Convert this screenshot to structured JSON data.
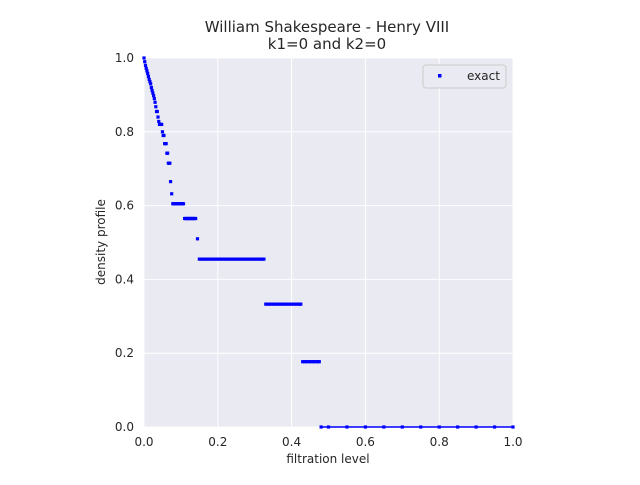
{
  "chart_data": {
    "type": "scatter",
    "title": "William Shakespeare - Henry VIII",
    "subtitle": "k1=0 and k2=0",
    "xlabel": "filtration level",
    "ylabel": "density profile",
    "xlim": [
      0.0,
      1.0
    ],
    "ylim": [
      0.0,
      1.0
    ],
    "xticks": [
      "0.0",
      "0.2",
      "0.4",
      "0.6",
      "0.8",
      "1.0"
    ],
    "yticks": [
      "0.0",
      "0.2",
      "0.4",
      "0.6",
      "0.8",
      "1.0"
    ],
    "grid": true,
    "legend_position": "top-right",
    "colors": {
      "background": "#eaeaf2",
      "grid": "#ffffff",
      "series": "#0000ff"
    },
    "series": [
      {
        "name": "exact",
        "marker": "square",
        "color": "#0000ff",
        "points": [
          [
            0.0,
            1.0
          ],
          [
            0.002,
            0.99
          ],
          [
            0.004,
            0.98
          ],
          [
            0.006,
            0.972
          ],
          [
            0.008,
            0.965
          ],
          [
            0.01,
            0.958
          ],
          [
            0.012,
            0.95
          ],
          [
            0.014,
            0.942
          ],
          [
            0.016,
            0.936
          ],
          [
            0.018,
            0.93
          ],
          [
            0.02,
            0.92
          ],
          [
            0.022,
            0.912
          ],
          [
            0.024,
            0.905
          ],
          [
            0.026,
            0.898
          ],
          [
            0.028,
            0.89
          ],
          [
            0.03,
            0.88
          ],
          [
            0.032,
            0.868
          ],
          [
            0.034,
            0.855
          ],
          [
            0.036,
            0.855
          ],
          [
            0.038,
            0.84
          ],
          [
            0.04,
            0.828
          ],
          [
            0.042,
            0.82
          ],
          [
            0.044,
            0.82
          ],
          [
            0.046,
            0.82
          ],
          [
            0.048,
            0.82
          ],
          [
            0.05,
            0.8
          ],
          [
            0.052,
            0.79
          ],
          [
            0.054,
            0.79
          ],
          [
            0.056,
            0.768
          ],
          [
            0.058,
            0.768
          ],
          [
            0.06,
            0.768
          ],
          [
            0.062,
            0.742
          ],
          [
            0.064,
            0.742
          ],
          [
            0.066,
            0.715
          ],
          [
            0.068,
            0.715
          ],
          [
            0.07,
            0.715
          ],
          [
            0.072,
            0.665
          ],
          [
            0.075,
            0.632
          ],
          [
            0.078,
            0.605
          ],
          [
            0.08,
            0.605
          ],
          [
            0.083,
            0.605
          ],
          [
            0.086,
            0.605
          ],
          [
            0.089,
            0.605
          ],
          [
            0.092,
            0.605
          ],
          [
            0.095,
            0.605
          ],
          [
            0.098,
            0.605
          ],
          [
            0.101,
            0.605
          ],
          [
            0.104,
            0.605
          ],
          [
            0.107,
            0.605
          ],
          [
            0.11,
            0.565
          ],
          [
            0.113,
            0.565
          ],
          [
            0.116,
            0.565
          ],
          [
            0.119,
            0.565
          ],
          [
            0.122,
            0.565
          ],
          [
            0.125,
            0.565
          ],
          [
            0.128,
            0.565
          ],
          [
            0.131,
            0.565
          ],
          [
            0.134,
            0.565
          ],
          [
            0.137,
            0.565
          ],
          [
            0.14,
            0.565
          ],
          [
            0.145,
            0.51
          ],
          [
            0.15,
            0.455
          ],
          [
            0.16,
            0.455
          ],
          [
            0.17,
            0.455
          ],
          [
            0.18,
            0.455
          ],
          [
            0.19,
            0.455
          ],
          [
            0.2,
            0.455
          ],
          [
            0.21,
            0.455
          ],
          [
            0.22,
            0.455
          ],
          [
            0.23,
            0.455
          ],
          [
            0.24,
            0.455
          ],
          [
            0.25,
            0.455
          ],
          [
            0.26,
            0.455
          ],
          [
            0.27,
            0.455
          ],
          [
            0.28,
            0.455
          ],
          [
            0.29,
            0.455
          ],
          [
            0.3,
            0.455
          ],
          [
            0.31,
            0.455
          ],
          [
            0.32,
            0.455
          ],
          [
            0.325,
            0.455
          ],
          [
            0.33,
            0.333
          ],
          [
            0.34,
            0.333
          ],
          [
            0.35,
            0.333
          ],
          [
            0.36,
            0.333
          ],
          [
            0.37,
            0.333
          ],
          [
            0.38,
            0.333
          ],
          [
            0.39,
            0.333
          ],
          [
            0.4,
            0.333
          ],
          [
            0.41,
            0.333
          ],
          [
            0.42,
            0.333
          ],
          [
            0.425,
            0.333
          ],
          [
            0.43,
            0.177
          ],
          [
            0.44,
            0.177
          ],
          [
            0.45,
            0.177
          ],
          [
            0.46,
            0.177
          ],
          [
            0.47,
            0.177
          ],
          [
            0.475,
            0.177
          ],
          [
            0.48,
            0.0
          ],
          [
            0.5,
            0.0
          ],
          [
            0.55,
            0.0
          ],
          [
            0.6,
            0.0
          ],
          [
            0.65,
            0.0
          ],
          [
            0.7,
            0.0
          ],
          [
            0.75,
            0.0
          ],
          [
            0.8,
            0.0
          ],
          [
            0.85,
            0.0
          ],
          [
            0.9,
            0.0
          ],
          [
            0.95,
            0.0
          ],
          [
            1.0,
            0.0
          ]
        ]
      }
    ]
  }
}
